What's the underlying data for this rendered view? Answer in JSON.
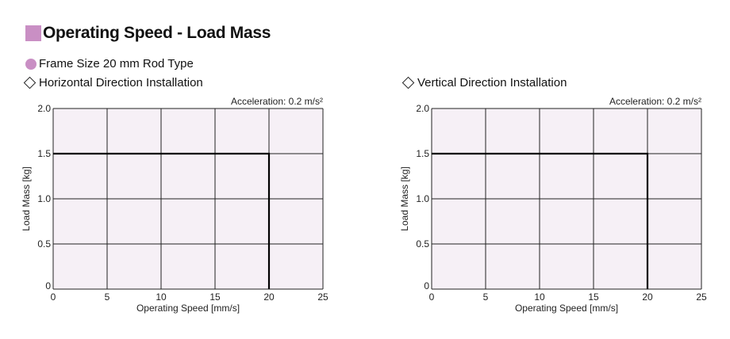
{
  "page": {
    "title": "Operating Speed - Load Mass",
    "subtitle": "Frame Size 20 mm Rod Type",
    "colors": {
      "accent": "#c98fc4",
      "plot_bg": "#f6f0f6",
      "grid": "#222222",
      "curve": "#000000"
    }
  },
  "chart_data": [
    {
      "type": "line",
      "title": "Horizontal Direction Installation",
      "annotation": "Acceleration: 0.2 m/s²",
      "xlabel": "Operating Speed [mm/s]",
      "ylabel": "Load Mass [kg]",
      "xlim": [
        0,
        25
      ],
      "ylim": [
        0,
        2.0
      ],
      "xticks": [
        "0",
        "5",
        "10",
        "15",
        "20",
        "25"
      ],
      "yticks": [
        "0",
        "0.5",
        "1.0",
        "1.5",
        "2.0"
      ],
      "grid": true,
      "series": [
        {
          "x": [
            0,
            20,
            20
          ],
          "y": [
            1.5,
            1.5,
            0
          ]
        }
      ]
    },
    {
      "type": "line",
      "title": "Vertical Direction Installation",
      "annotation": "Acceleration: 0.2 m/s²",
      "xlabel": "Operating Speed [mm/s]",
      "ylabel": "Load Mass [kg]",
      "xlim": [
        0,
        25
      ],
      "ylim": [
        0,
        2.0
      ],
      "xticks": [
        "0",
        "5",
        "10",
        "15",
        "20",
        "25"
      ],
      "yticks": [
        "0",
        "0.5",
        "1.0",
        "1.5",
        "2.0"
      ],
      "grid": true,
      "series": [
        {
          "x": [
            0,
            20,
            20
          ],
          "y": [
            1.5,
            1.5,
            0
          ]
        }
      ]
    }
  ]
}
